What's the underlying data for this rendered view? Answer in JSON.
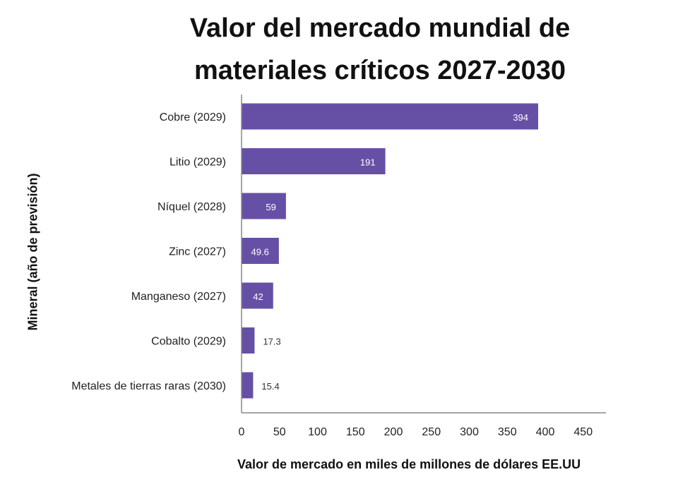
{
  "chart_data": {
    "type": "bar",
    "orientation": "horizontal",
    "title_lines": [
      "Valor del mercado mundial de",
      "materiales críticos 2027-2030"
    ],
    "title": "Valor del mercado mundial de materiales críticos 2027-2030",
    "xlabel": "Valor de mercado en miles de millones de dólares EE.UU",
    "ylabel": "Mineral (año de previsión)",
    "categories": [
      "Cobre (2029)",
      "Litio (2029)",
      "Níquel (2028)",
      "Zinc (2027)",
      "Manganeso (2027)",
      "Cobalto (2029)",
      "Metales de tierras raras (2030)"
    ],
    "values": [
      394,
      191,
      59,
      49.6,
      42,
      17.3,
      15.4
    ],
    "value_labels": [
      "394",
      "191",
      "59",
      "49.6",
      "42",
      "17.3",
      "15.4"
    ],
    "xlim": [
      0,
      480
    ],
    "xticks": [
      0,
      50,
      100,
      150,
      200,
      250,
      300,
      350,
      400,
      450
    ],
    "grid": false,
    "legend": "none",
    "bar_color": "#6650a6"
  }
}
